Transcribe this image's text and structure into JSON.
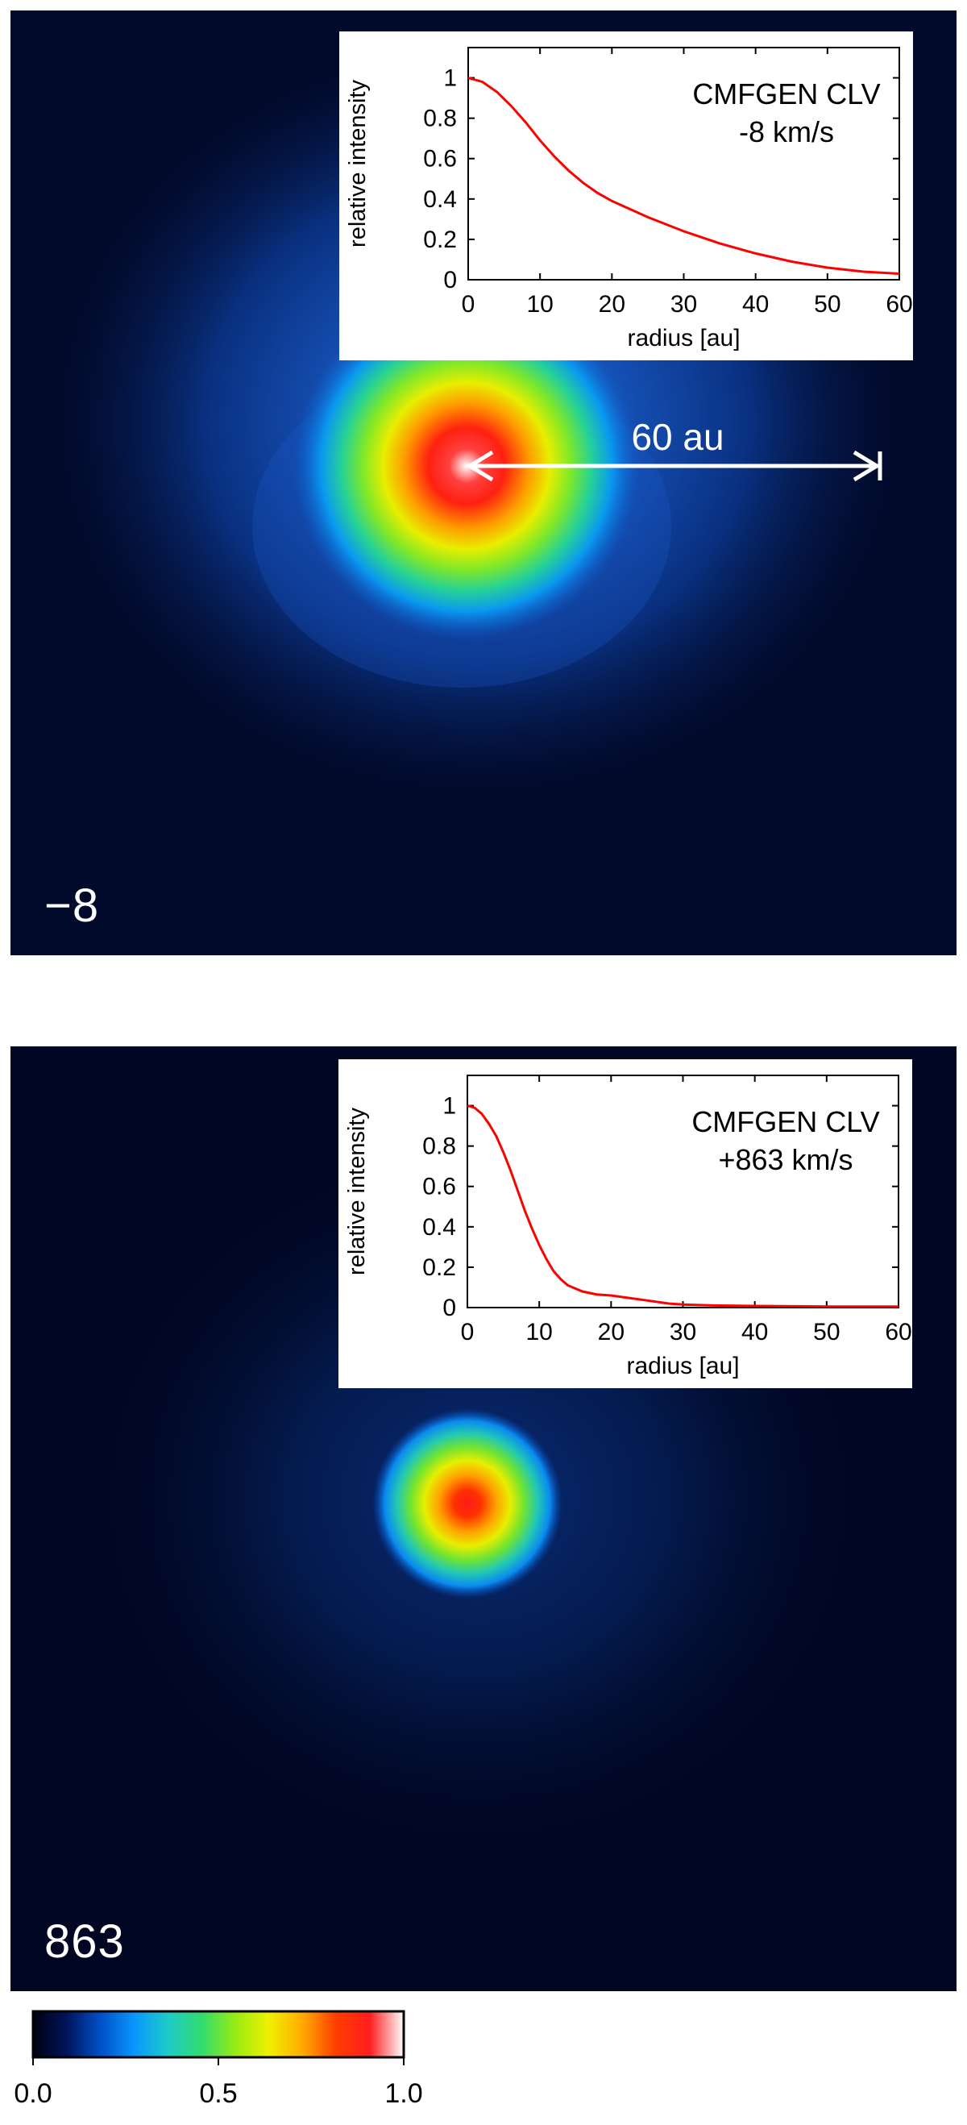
{
  "colormap": {
    "stops": [
      "#000012",
      "#00145a",
      "#0050c8",
      "#0a96ff",
      "#1ecbc8",
      "#32dc6e",
      "#96ec14",
      "#f0f000",
      "#ffaa00",
      "#ff3c00",
      "#ff1e1e",
      "#ffffff"
    ],
    "tick_labels": [
      "0.0",
      "0.5",
      "1.0"
    ],
    "ticks": [
      0.0,
      0.5,
      1.0
    ]
  },
  "panels": [
    {
      "label": "−8",
      "scale_bar_label": "60 au",
      "inset": {
        "annotation_line1": "CMFGEN CLV",
        "annotation_line2": "-8 km/s"
      }
    },
    {
      "label": "863",
      "inset": {
        "annotation_line1": "CMFGEN CLV",
        "annotation_line2": "+863 km/s"
      }
    }
  ],
  "chart_data": [
    {
      "type": "line",
      "xlabel": "radius [au]",
      "ylabel": "relative intensity",
      "xlim": [
        0,
        60
      ],
      "ylim": [
        0,
        1.15
      ],
      "xticks": [
        0,
        10,
        20,
        30,
        40,
        50,
        60
      ],
      "yticks": [
        0,
        0.2,
        0.4,
        0.6,
        0.8,
        1
      ],
      "line_color": "#ff0000",
      "x": [
        0,
        2,
        4,
        6,
        8,
        10,
        12,
        14,
        16,
        18,
        20,
        25,
        30,
        35,
        40,
        45,
        50,
        55,
        60
      ],
      "y": [
        1.0,
        0.98,
        0.93,
        0.86,
        0.78,
        0.69,
        0.61,
        0.54,
        0.48,
        0.43,
        0.39,
        0.31,
        0.24,
        0.18,
        0.13,
        0.09,
        0.06,
        0.04,
        0.03
      ]
    },
    {
      "type": "line",
      "xlabel": "radius [au]",
      "ylabel": "relative intensity",
      "xlim": [
        0,
        60
      ],
      "ylim": [
        0,
        1.15
      ],
      "xticks": [
        0,
        10,
        20,
        30,
        40,
        50,
        60
      ],
      "yticks": [
        0,
        0.2,
        0.4,
        0.6,
        0.8,
        1
      ],
      "line_color": "#ff0000",
      "x": [
        0,
        1,
        2,
        3,
        4,
        5,
        6,
        7,
        8,
        9,
        10,
        11,
        12,
        13,
        14,
        16,
        18,
        20,
        22,
        25,
        28,
        30,
        35,
        40,
        50,
        60
      ],
      "y": [
        1.0,
        0.99,
        0.96,
        0.91,
        0.85,
        0.77,
        0.68,
        0.58,
        0.48,
        0.39,
        0.31,
        0.24,
        0.18,
        0.14,
        0.11,
        0.08,
        0.065,
        0.06,
        0.05,
        0.035,
        0.02,
        0.015,
        0.01,
        0.008,
        0.005,
        0.005
      ]
    }
  ]
}
